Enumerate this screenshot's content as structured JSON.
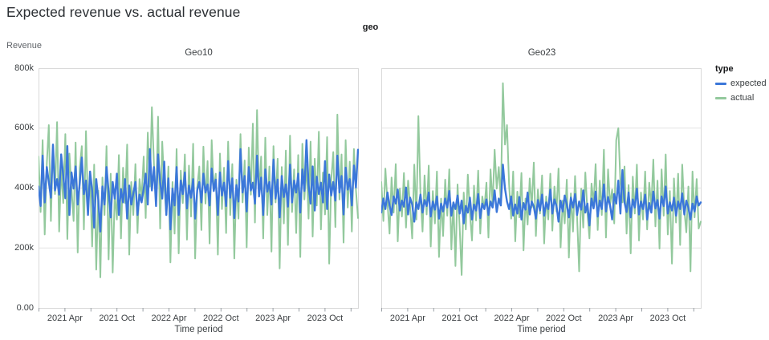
{
  "page": {
    "title": "Expected revenue vs. actual revenue"
  },
  "colors": {
    "expected": "#3b77d9",
    "actual": "#93c99d",
    "grid": "#e3e3e3",
    "plot_border": "#d9d9d9",
    "tick": "#9aa0a6",
    "axis_text": "#3c4043",
    "muted_text": "#5f6368",
    "header_text": "#17181a"
  },
  "legend": {
    "title": "type",
    "items": [
      {
        "label": "expected",
        "color": "#3b77d9"
      },
      {
        "label": "actual",
        "color": "#93c99d"
      }
    ]
  },
  "chart_data": {
    "type": "line",
    "title": "Expected revenue vs. actual revenue",
    "facet_header": "geo",
    "ylabel": "Revenue",
    "xlabel": "Time period",
    "ylim": [
      0,
      800
    ],
    "units": "thousands (k)",
    "grid": true,
    "legend_position": "right",
    "y_ticks": [
      {
        "value": 0,
        "label": "0.00"
      },
      {
        "value": 200,
        "label": "200k"
      },
      {
        "value": 400,
        "label": "400k"
      },
      {
        "value": 600,
        "label": "600k"
      },
      {
        "value": 800,
        "label": "800k"
      }
    ],
    "x_start": "2021-01",
    "x_end": "2023-12",
    "frequency": "weekly",
    "x_minor_tick_every_months": 3,
    "x_labeled_months": [
      3,
      9,
      15,
      21,
      27,
      33
    ],
    "x_tick_labels": [
      "2021 Apr",
      "2021 Oct",
      "2022 Apr",
      "2022 Oct",
      "2023 Apr",
      "2023 Oct"
    ],
    "facets": [
      {
        "title": "Geo10",
        "series": [
          {
            "name": "expected",
            "color": "#3b77d9",
            "values": [
              405,
              340,
              508,
              352,
              470,
              421,
              368,
              545,
              392,
              430,
              378,
              512,
              441,
              366,
              540,
              310,
              452,
              398,
              472,
              345,
              418,
              502,
              380,
              425,
              310,
              455,
              392,
              268,
              430,
              360,
              255,
              405,
              345,
              470,
              388,
              302,
              420,
              365,
              448,
              310,
              396,
              352,
              430,
              298,
              408,
              345,
              382,
              420,
              310,
              378,
              352,
              398,
              448,
              345,
              530,
              392,
              470,
              340,
              512,
              420,
              365,
              488,
              310,
              432,
              262,
              398,
              342,
              470,
              310,
              425,
              380,
              452,
              332,
              408,
              368,
              430,
              298,
              392,
              420,
              352,
              448,
              385,
              412,
              342,
              465,
              390,
              428,
              310,
              452,
              375,
              418,
              340,
              490,
              368,
              432,
              300,
              410,
              355,
              530,
              385,
              440,
              322,
              470,
              392,
              418,
              348,
              508,
              372,
              435,
              310,
              462,
              388,
              420,
              345,
              495,
              365,
              428,
              302,
              440,
              370,
              412,
              338,
              478,
              352,
              425,
              385,
              448,
              318,
              462,
              390,
              560,
              410,
              348,
              472,
              325,
              438,
              380,
              418,
              352,
              490,
              330,
              445,
              375,
              420,
              358,
              508,
              385,
              440,
              312,
              468,
              395,
              430,
              342,
              475,
              402,
              528
            ]
          },
          {
            "name": "actual",
            "color": "#93c99d",
            "values": [
              505,
              320,
              560,
              245,
              480,
              610,
              290,
              545,
              380,
              620,
              255,
              470,
              350,
              580,
              230,
              515,
              398,
              290,
              552,
              185,
              468,
              540,
              262,
              590,
              330,
              450,
              205,
              478,
              128,
              392,
              102,
              435,
              310,
              540,
              162,
              448,
              118,
              385,
              295,
              510,
              232,
              468,
              350,
              545,
              178,
              420,
              310,
              480,
              250,
              430,
              368,
              505,
              300,
              585,
              405,
              670,
              480,
              352,
              638,
              265,
              555,
              410,
              310,
              472,
              152,
              420,
              248,
              530,
              182,
              458,
              350,
              512,
              228,
              475,
              305,
              548,
              165,
              402,
              472,
              260,
              538,
              348,
              490,
              215,
              560,
              390,
              448,
              178,
              515,
              330,
              468,
              250,
              555,
              310,
              480,
              165,
              428,
              298,
              580,
              352,
              492,
              202,
              535,
              378,
              615,
              285,
              660,
              380,
              505,
              232,
              568,
              310,
              472,
              188,
              540,
              352,
              498,
              132,
              470,
              282,
              525,
              210,
              575,
              320,
              462,
              250,
              510,
              170,
              548,
              362,
              478,
              298,
              555,
              238,
              498,
              342,
              588,
              262,
              452,
              312,
              570,
              148,
              425,
              520,
              270,
              645,
              362,
              512,
              218,
              560,
              335,
              488,
              255,
              530,
              395,
              300
            ]
          }
        ]
      },
      {
        "title": "Geo23",
        "series": [
          {
            "name": "expected",
            "color": "#3b77d9",
            "values": [
              318,
              365,
              330,
              385,
              342,
              310,
              372,
              348,
              395,
              325,
              358,
              338,
              402,
              312,
              368,
              345,
              288,
              352,
              330,
              378,
              318,
              360,
              340,
              385,
              305,
              355,
              328,
              372,
              298,
              348,
              322,
              365,
              335,
              390,
              308,
              352,
              330,
              375,
              315,
              358,
              282,
              340,
              318,
              368,
              295,
              345,
              325,
              380,
              300,
              348,
              330,
              362,
              310,
              355,
              335,
              392,
              320,
              365,
              342,
              478,
              398,
              355,
              330,
              372,
              308,
              345,
              315,
              370,
              295,
              350,
              328,
              385,
              312,
              355,
              338,
              298,
              360,
              325,
              378,
              308,
              352,
              330,
              395,
              315,
              362,
              340,
              288,
              358,
              322,
              375,
              345,
              302,
              368,
              335,
              380,
              310,
              355,
              328,
              392,
              318,
              348,
              275,
              365,
              332,
              388,
              305,
              358,
              330,
              412,
              322,
              370,
              342,
              295,
              380,
              348,
              425,
              315,
              460,
              352,
              320,
              385,
              302,
              362,
              335,
              398,
              312,
              355,
              330,
              378,
              295,
              350,
              318,
              388,
              332,
              360,
              298,
              372,
              340,
              405,
              315,
              352,
              325,
              368,
              308,
              355,
              330,
              382,
              312,
              358,
              335,
              295,
              348,
              322,
              372,
              342,
              352
            ]
          },
          {
            "name": "actual",
            "color": "#93c99d",
            "values": [
              420,
              290,
              465,
              352,
              248,
              435,
              318,
              480,
              222,
              398,
              305,
              450,
              268,
              425,
              340,
              232,
              478,
              295,
              640,
              380,
              255,
              442,
              312,
              475,
              205,
              390,
              282,
              455,
              170,
              365,
              240,
              428,
              308,
              462,
              195,
              352,
              140,
              412,
              272,
              110,
              385,
              262,
              445,
              318,
              225,
              408,
              292,
              458,
              248,
              372,
              330,
              418,
              235,
              462,
              345,
              528,
              398,
              470,
              355,
              750,
              545,
              610,
              412,
              298,
              455,
              222,
              388,
              302,
              450,
              192,
              365,
              278,
              432,
              335,
              485,
              240,
              395,
              315,
              442,
              215,
              372,
              295,
              448,
              258,
              405,
              322,
              465,
              202,
              358,
              282,
              428,
              168,
              382,
              255,
              440,
              305,
              122,
              398,
              268,
              452,
              318,
              232,
              415,
              348,
              480,
              260,
              425,
              310,
              528,
              235,
              462,
              345,
              395,
              282,
              560,
              600,
              418,
              352,
              472,
              248,
              410,
              182,
              438,
              315,
              478,
              225,
              385,
              295,
              455,
              262,
              418,
              338,
              495,
              272,
              425,
              198,
              462,
              308,
              512,
              245,
              390,
              148,
              432,
              285,
              448,
              210,
              478,
              328,
              252,
              405,
              122,
              455,
              302,
              430,
              265,
              288
            ]
          }
        ]
      }
    ]
  }
}
